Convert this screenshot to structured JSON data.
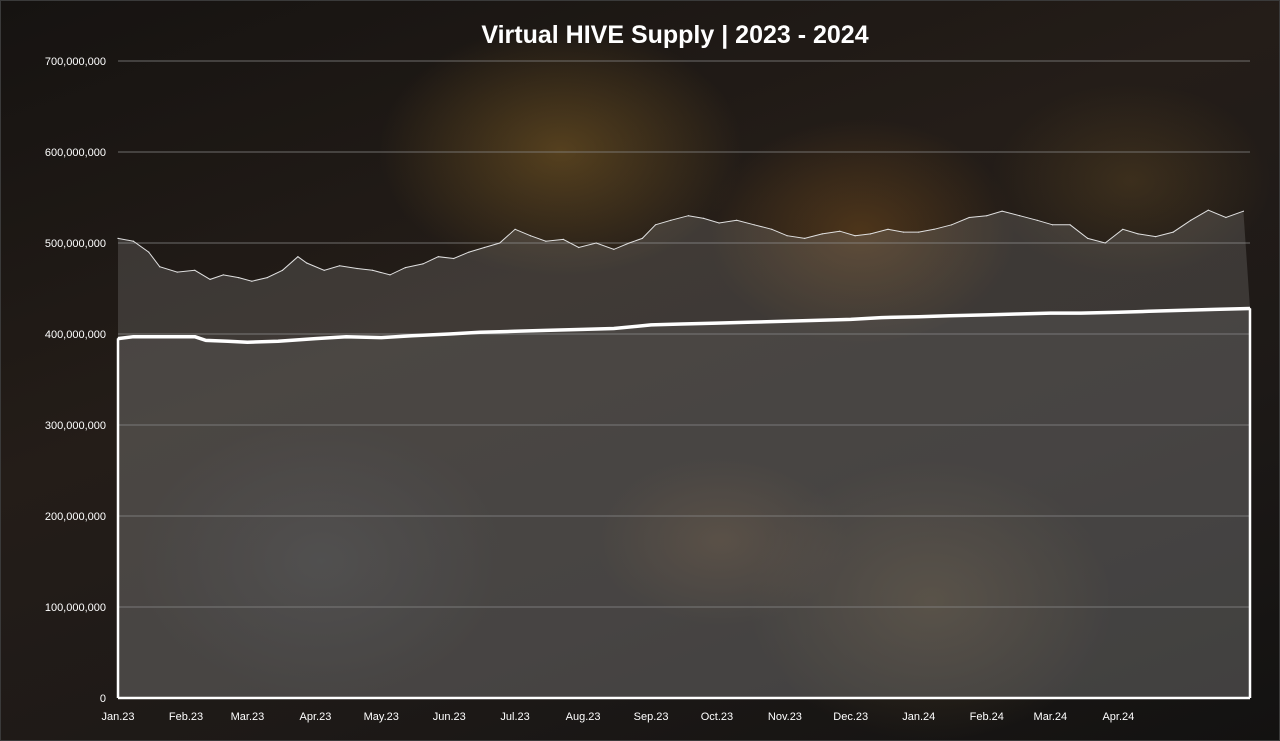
{
  "chart_data": {
    "type": "area",
    "title": "Virtual HIVE Supply | 2023 - 2024",
    "xlabel": "",
    "ylabel": "",
    "ylim": [
      0,
      700000000
    ],
    "yticks": [
      0,
      100000000,
      200000000,
      300000000,
      400000000,
      500000000,
      600000000,
      700000000
    ],
    "ytick_labels": [
      "0",
      "100,000,000",
      "200,000,000",
      "300,000,000",
      "400,000,000",
      "500,000,000",
      "600,000,000",
      "700,000,000"
    ],
    "xlim": [
      "2023-01-01",
      "2024-05-31"
    ],
    "xticks": [
      "2023-01-01",
      "2023-02-01",
      "2023-03-01",
      "2023-04-01",
      "2023-05-01",
      "2023-06-01",
      "2023-07-01",
      "2023-08-01",
      "2023-09-01",
      "2023-10-01",
      "2023-11-01",
      "2023-12-01",
      "2024-01-01",
      "2024-02-01",
      "2024-03-01",
      "2024-04-01"
    ],
    "xtick_labels": [
      "Jan.23",
      "Feb.23",
      "Mar.23",
      "Apr.23",
      "May.23",
      "Jun.23",
      "Jul.23",
      "Aug.23",
      "Sep.23",
      "Oct.23",
      "Nov.23",
      "Dec.23",
      "Jan.24",
      "Feb.24",
      "Mar.24",
      "Apr.24"
    ],
    "grid": true,
    "legend": "none",
    "series": [
      {
        "style": "line-thin",
        "color": "#e0e0e0",
        "x": [
          "2023-01-01",
          "2023-01-08",
          "2023-01-15",
          "2023-01-20",
          "2023-01-28",
          "2023-02-05",
          "2023-02-12",
          "2023-02-18",
          "2023-02-25",
          "2023-03-03",
          "2023-03-10",
          "2023-03-17",
          "2023-03-24",
          "2023-03-28",
          "2023-04-05",
          "2023-04-12",
          "2023-04-20",
          "2023-04-27",
          "2023-05-05",
          "2023-05-12",
          "2023-05-20",
          "2023-05-27",
          "2023-06-03",
          "2023-06-10",
          "2023-06-17",
          "2023-06-24",
          "2023-07-01",
          "2023-07-08",
          "2023-07-15",
          "2023-07-23",
          "2023-07-30",
          "2023-08-07",
          "2023-08-15",
          "2023-08-22",
          "2023-08-28",
          "2023-09-03",
          "2023-09-10",
          "2023-09-18",
          "2023-09-25",
          "2023-10-02",
          "2023-10-10",
          "2023-10-18",
          "2023-10-26",
          "2023-11-02",
          "2023-11-10",
          "2023-11-18",
          "2023-11-26",
          "2023-12-03",
          "2023-12-10",
          "2023-12-18",
          "2023-12-25",
          "2024-01-01",
          "2024-01-08",
          "2024-01-16",
          "2024-01-24",
          "2024-02-01",
          "2024-02-08",
          "2024-02-16",
          "2024-02-24",
          "2024-03-02",
          "2024-03-10",
          "2024-03-18",
          "2024-03-26",
          "2024-04-03",
          "2024-04-10",
          "2024-04-18",
          "2024-04-26",
          "2024-05-04",
          "2024-05-12",
          "2024-05-20",
          "2024-05-28"
        ],
        "values": [
          505000000,
          502000000,
          490000000,
          474000000,
          468000000,
          470000000,
          460000000,
          465000000,
          462000000,
          458000000,
          462000000,
          470000000,
          485000000,
          478000000,
          470000000,
          475000000,
          472000000,
          470000000,
          465000000,
          473000000,
          477000000,
          485000000,
          483000000,
          490000000,
          495000000,
          500000000,
          515000000,
          508000000,
          502000000,
          504000000,
          495000000,
          500000000,
          493000000,
          500000000,
          505000000,
          520000000,
          525000000,
          530000000,
          527000000,
          522000000,
          525000000,
          520000000,
          515000000,
          508000000,
          505000000,
          510000000,
          513000000,
          508000000,
          510000000,
          515000000,
          512000000,
          512000000,
          515000000,
          520000000,
          528000000,
          530000000,
          535000000,
          530000000,
          525000000,
          520000000,
          520000000,
          505000000,
          500000000,
          515000000,
          510000000,
          507000000,
          512000000,
          525000000,
          536000000,
          528000000,
          535000000
        ]
      },
      {
        "style": "area-thick",
        "color": "#ffffff",
        "x": [
          "2023-01-01",
          "2023-01-08",
          "2023-01-20",
          "2023-02-05",
          "2023-02-10",
          "2023-02-20",
          "2023-03-01",
          "2023-03-15",
          "2023-04-01",
          "2023-04-15",
          "2023-05-01",
          "2023-05-15",
          "2023-06-01",
          "2023-06-15",
          "2023-07-01",
          "2023-07-15",
          "2023-08-01",
          "2023-08-15",
          "2023-09-01",
          "2023-09-15",
          "2023-10-01",
          "2023-10-15",
          "2023-11-01",
          "2023-11-15",
          "2023-12-01",
          "2023-12-15",
          "2024-01-01",
          "2024-01-15",
          "2024-02-01",
          "2024-02-15",
          "2024-03-01",
          "2024-03-15",
          "2024-04-01",
          "2024-04-15",
          "2024-05-01",
          "2024-05-15",
          "2024-05-31"
        ],
        "values": [
          395000000,
          397000000,
          397000000,
          397000000,
          393000000,
          392000000,
          391000000,
          392000000,
          395000000,
          397000000,
          396000000,
          398000000,
          400000000,
          402000000,
          403000000,
          404000000,
          405000000,
          406000000,
          410000000,
          411000000,
          412000000,
          413000000,
          414000000,
          415000000,
          416000000,
          418000000,
          419000000,
          420000000,
          421000000,
          422000000,
          423000000,
          423000000,
          424000000,
          425000000,
          426000000,
          427000000,
          428000000
        ]
      }
    ],
    "colors": {
      "grid": "#8a8a8a",
      "axis": "#ffffff",
      "area_fill": "rgba(140,140,140,0.38)",
      "upper_band_fill": "rgba(165,165,165,0.22)"
    }
  }
}
